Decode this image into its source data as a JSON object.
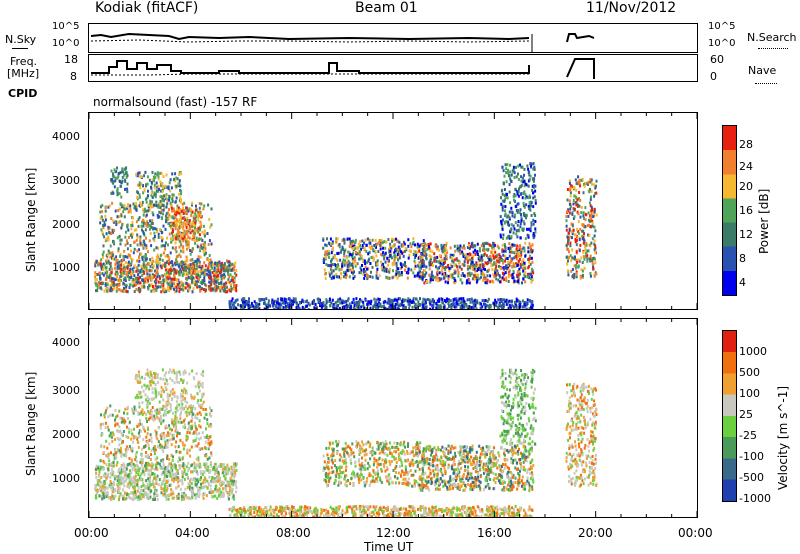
{
  "header": {
    "station": "Kodiak (fitACF)",
    "beam": "Beam 01",
    "date": "11/Nov/2012"
  },
  "status_panels": {
    "nsky": {
      "label": "N.Sky",
      "ticks": [
        "10^5",
        "10^0"
      ]
    },
    "nsearch": {
      "label": "N.Search",
      "ticks": [
        "10^5",
        "10^0"
      ]
    },
    "freq": {
      "label_top": "Freq.",
      "label_unit": "[MHz]",
      "ticks": [
        "18",
        "8"
      ]
    },
    "nave": {
      "label": "Nave",
      "ticks": [
        "60",
        "0"
      ]
    },
    "cpid": {
      "label": "CPID",
      "value": "normalsound (fast) -157 RF"
    }
  },
  "chart_data": [
    {
      "type": "heatmap",
      "name": "power",
      "ylabel": "Slant Range [km]",
      "xlim": [
        0,
        24
      ],
      "ylim": [
        180,
        4600
      ],
      "yticks": [
        "1000",
        "2000",
        "3000",
        "4000"
      ],
      "colorbar": {
        "label": "Power [dB]",
        "ticks": [
          "4",
          "8",
          "12",
          "16",
          "20",
          "24",
          "28"
        ],
        "colors": [
          "#0000ee",
          "#2a52b0",
          "#3c7a6a",
          "#4fa45a",
          "#f5b830",
          "#f08030",
          "#e82010"
        ]
      }
    },
    {
      "type": "heatmap",
      "name": "velocity",
      "ylabel": "Slant Range [km]",
      "xlabel": "Time UT",
      "xlim": [
        0,
        24
      ],
      "xticks": [
        "00:00",
        "04:00",
        "08:00",
        "12:00",
        "16:00",
        "20:00",
        "00:00"
      ],
      "ylim": [
        180,
        4600
      ],
      "yticks": [
        "1000",
        "2000",
        "3000",
        "4000"
      ],
      "colorbar": {
        "label": "Velocity [m s^-1]",
        "ticks": [
          "1000",
          "500",
          "100",
          "25",
          "-25",
          "-100",
          "-500",
          "-1000"
        ],
        "colors": [
          "#2040b0",
          "#3a6a8a",
          "#4a9a5a",
          "#6ad040",
          "#c8c8c0",
          "#f0a030",
          "#f07010",
          "#e02010"
        ]
      }
    }
  ]
}
